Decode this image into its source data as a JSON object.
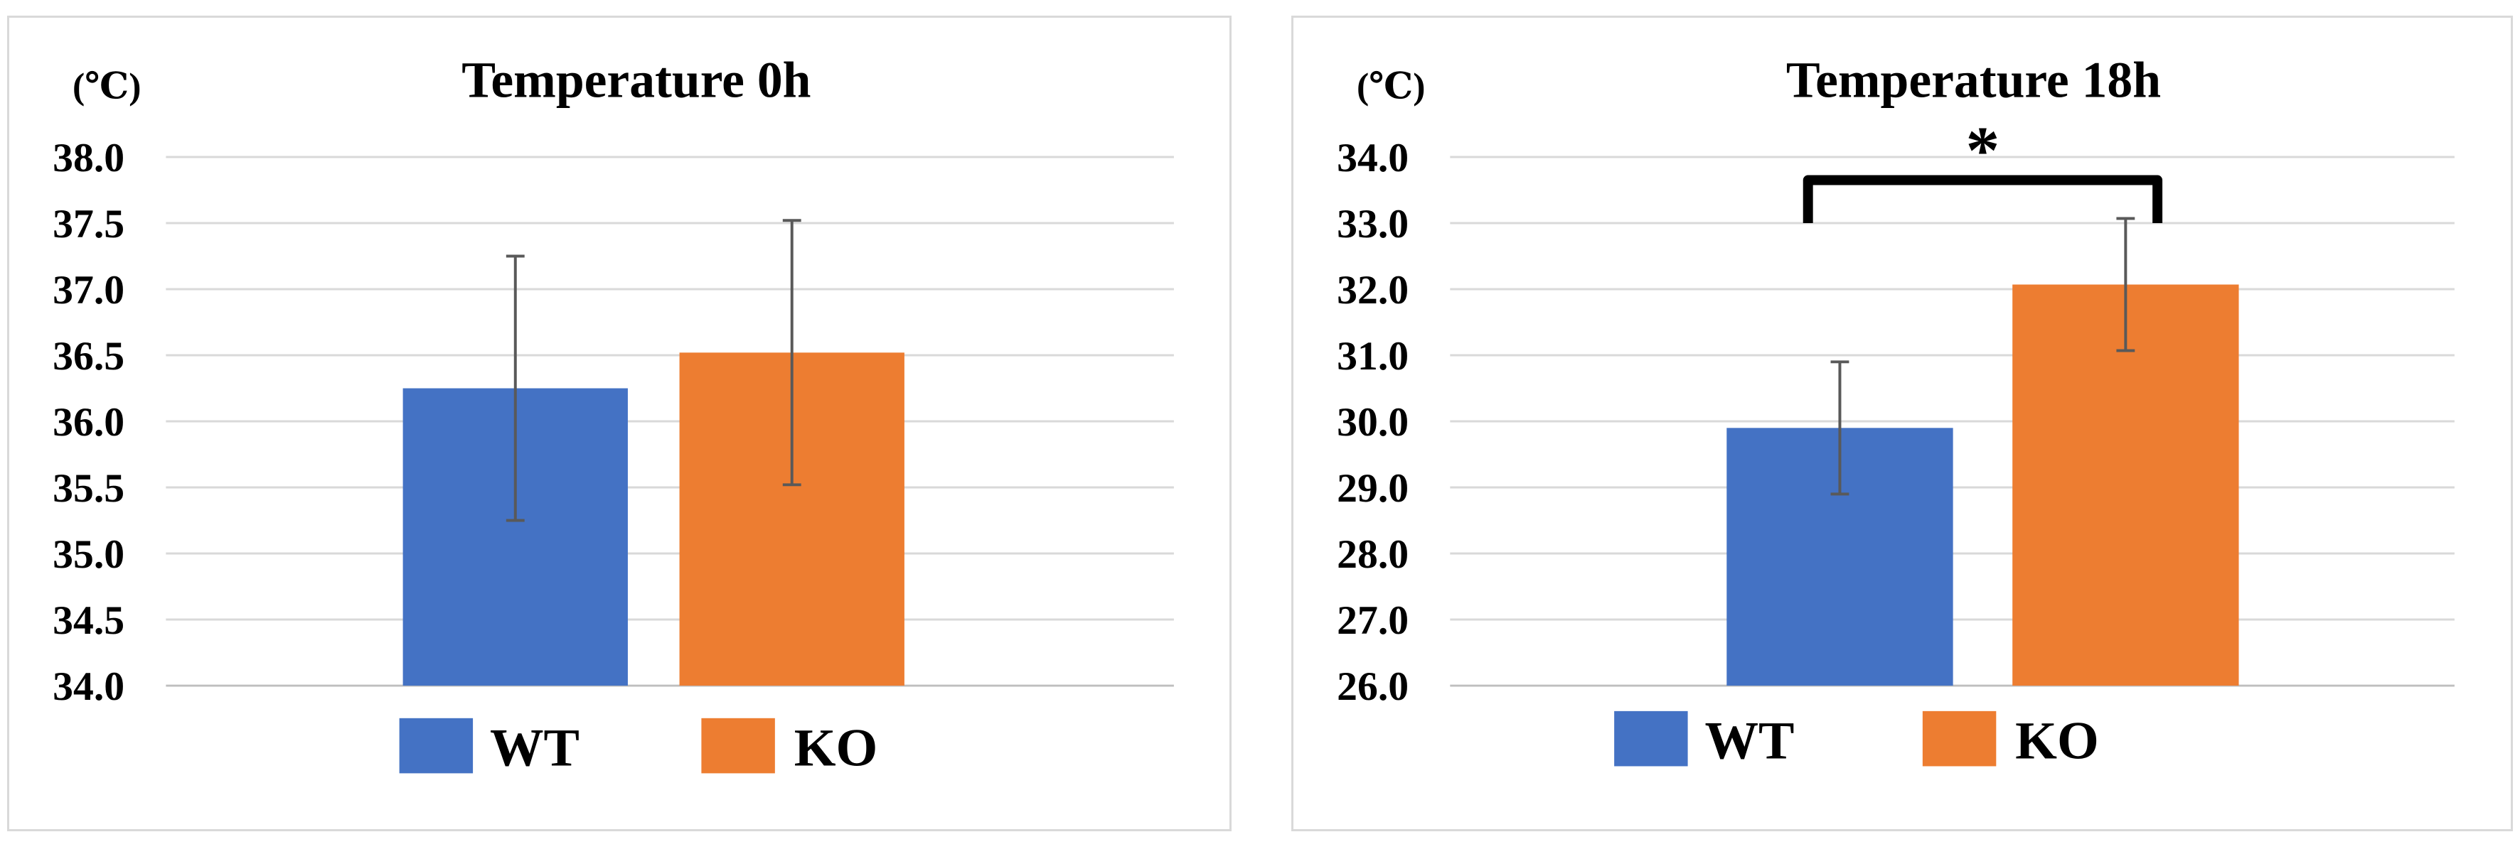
{
  "chart_data": [
    {
      "type": "bar",
      "title": "Temperature  0h",
      "unit_label": "(℃)",
      "categories": [
        "WT",
        "KO"
      ],
      "values": [
        36.25,
        36.52
      ],
      "errors": [
        1.0,
        1.0
      ],
      "colors": [
        "#4472c4",
        "#ed7d31"
      ],
      "ylim": [
        34.0,
        38.0
      ],
      "yticks": [
        "38.0",
        "37.5",
        "37.0",
        "36.5",
        "36.0",
        "35.5",
        "35.0",
        "34.5",
        "34.0"
      ],
      "grid": true,
      "legend": [
        {
          "label": "WT",
          "color": "#4472c4"
        },
        {
          "label": "KO",
          "color": "#ed7d31"
        }
      ],
      "legend_position": "bottom",
      "significance": null
    },
    {
      "type": "bar",
      "title": "Temperature  18h",
      "unit_label": "(℃)",
      "categories": [
        "WT",
        "KO"
      ],
      "values": [
        29.9,
        32.07
      ],
      "errors": [
        1.0,
        1.0
      ],
      "colors": [
        "#4472c4",
        "#ed7d31"
      ],
      "ylim": [
        26.0,
        34.0
      ],
      "yticks": [
        "34.0",
        "33.0",
        "32.0",
        "31.0",
        "30.0",
        "29.0",
        "28.0",
        "27.0",
        "26.0"
      ],
      "grid": true,
      "legend": [
        {
          "label": "WT",
          "color": "#4472c4"
        },
        {
          "label": "KO",
          "color": "#ed7d31"
        }
      ],
      "legend_position": "bottom",
      "significance": {
        "label": "*",
        "between": [
          "WT",
          "KO"
        ]
      }
    }
  ]
}
